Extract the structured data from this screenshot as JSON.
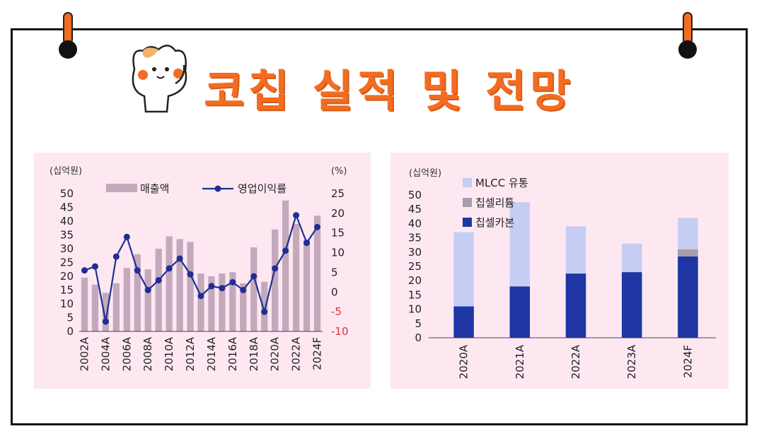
{
  "title": "코칩 실적 및 전망",
  "colors": {
    "accent": "#f26d21",
    "panel_bg": "#fde8f2",
    "bar_sales": "#c4a9bd",
    "line_margin": "#1f2e94",
    "mlcc": "#c5cdf3",
    "chipcell_lithium": "#a89cad",
    "chipcell_carbon": "#1d36a3",
    "neg_tick": "#e0303a"
  },
  "icons": [
    "cat-mascot-icon",
    "pin-icon"
  ],
  "chart_data": [
    {
      "type": "bar+line",
      "left_unit": "(십억원)",
      "right_unit": "(%)",
      "categories": [
        "2002A",
        "2003A",
        "2004A",
        "2005A",
        "2006A",
        "2007A",
        "2008A",
        "2009A",
        "2010A",
        "2011A",
        "2012A",
        "2013A",
        "2014A",
        "2015A",
        "2016A",
        "2017A",
        "2018A",
        "2019A",
        "2020A",
        "2021A",
        "2022A",
        "2023A",
        "2024F"
      ],
      "x_tick_labels": [
        "2002A",
        "2004A",
        "2006A",
        "2008A",
        "2010A",
        "2012A",
        "2014A",
        "2016A",
        "2018A",
        "2020A",
        "2022A",
        "2024F"
      ],
      "series": [
        {
          "name": "매출액",
          "kind": "bar",
          "axis": "left",
          "values": [
            19.5,
            17,
            14,
            17.5,
            23,
            28,
            22.5,
            30,
            34.5,
            33.5,
            32.5,
            21,
            20,
            21,
            21.5,
            17.5,
            30.5,
            18,
            37,
            47.5,
            39,
            33,
            42
          ]
        },
        {
          "name": "영업이익률",
          "kind": "line",
          "axis": "right",
          "values": [
            5.5,
            6.5,
            -7.5,
            9,
            14,
            5.5,
            0.5,
            3,
            6,
            8.5,
            4.5,
            -1,
            1.5,
            1,
            2.5,
            0.5,
            4,
            -5,
            6,
            10.5,
            19.5,
            12.5,
            16.5
          ]
        }
      ],
      "left_axis": {
        "ylim": [
          0,
          50
        ],
        "ticks": [
          "0",
          "5",
          "10",
          "15",
          "20",
          "25",
          "30",
          "35",
          "40",
          "45",
          "50"
        ]
      },
      "right_axis": {
        "ylim": [
          -10,
          25
        ],
        "ticks": [
          "-10",
          "-5",
          "0",
          "5",
          "10",
          "15",
          "20",
          "25"
        ]
      },
      "legend": "top"
    },
    {
      "type": "stacked-bar",
      "unit": "(십억원)",
      "categories": [
        "2020A",
        "2021A",
        "2022A",
        "2023A",
        "2024F"
      ],
      "series": [
        {
          "name": "칩셀카본",
          "values": [
            11,
            18,
            22.5,
            23,
            28.5
          ]
        },
        {
          "name": "칩셀리튬",
          "values": [
            0,
            0,
            0,
            0,
            2.5
          ]
        },
        {
          "name": "MLCC 유통",
          "values": [
            26,
            29.5,
            16.5,
            10,
            11
          ]
        }
      ],
      "ylim": [
        0,
        50
      ],
      "y_ticks": [
        "0",
        "5",
        "10",
        "15",
        "20",
        "25",
        "30",
        "35",
        "40",
        "45",
        "50"
      ],
      "legend": "top-left"
    }
  ]
}
